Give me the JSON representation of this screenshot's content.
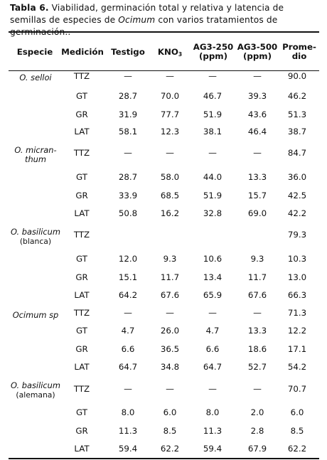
{
  "caption": {
    "label": "Tabla 6.",
    "text_before": " Viabilidad, germinación total y relativa y latencia de semillas de especies de ",
    "italic": "Ocimum",
    "text_after": " con varios tratamientos de germinación.."
  },
  "header": {
    "especie": "Especie",
    "medicion": "Medición",
    "testigo": "Testigo",
    "kno3_base": "KNO",
    "kno3_sub": "3",
    "ag250_line1": "AG3-250",
    "ag250_line2": "(ppm)",
    "ag500_line1": "AG3-500",
    "ag500_line2": "(ppm)",
    "promedio_line1": "Prome-",
    "promedio_line2": "dio"
  },
  "groups": [
    {
      "species_line1": "O. selloi",
      "species_line2": "",
      "rows": [
        {
          "medicion": "TTZ",
          "values": [
            "—",
            "—",
            "—",
            "—",
            "90.0"
          ]
        },
        {
          "medicion": "GT",
          "values": [
            "28.7",
            "70.0",
            "46.7",
            "39.3",
            "46.2"
          ]
        },
        {
          "medicion": "GR",
          "values": [
            "31.9",
            "77.7",
            "51.9",
            "43.6",
            "51.3"
          ]
        },
        {
          "medicion": "LAT",
          "values": [
            "58.1",
            "12.3",
            "38.1",
            "46.4",
            "38.7"
          ]
        }
      ]
    },
    {
      "species_line1": "O. micran-",
      "species_line2": "thum",
      "rows": [
        {
          "medicion": "TTZ",
          "values": [
            "—",
            "—",
            "—",
            "—",
            "84.7"
          ]
        },
        {
          "medicion": "GT",
          "values": [
            "28.7",
            "58.0",
            "44.0",
            "13.3",
            "36.0"
          ]
        },
        {
          "medicion": "GR",
          "values": [
            "33.9",
            "68.5",
            "51.9",
            "15.7",
            "42.5"
          ]
        },
        {
          "medicion": "LAT",
          "values": [
            "50.8",
            "16.2",
            "32.8",
            "69.0",
            "42.2"
          ]
        }
      ]
    },
    {
      "species_line1": "O. basilicum",
      "species_line2": "(blanca)",
      "rows": [
        {
          "medicion": "TTZ",
          "values": [
            "",
            "",
            "",
            "",
            "79.3"
          ]
        },
        {
          "medicion": "GT",
          "values": [
            "12.0",
            "9.3",
            "10.6",
            "9.3",
            "10.3"
          ]
        },
        {
          "medicion": "GR",
          "values": [
            "15.1",
            "11.7",
            "13.4",
            "11.7",
            "13.0"
          ]
        },
        {
          "medicion": "LAT",
          "values": [
            "64.2",
            "67.6",
            "65.9",
            "67.6",
            "66.3"
          ]
        }
      ]
    },
    {
      "species_line1": "Ocimum sp",
      "species_line2": "",
      "rows": [
        {
          "medicion": "TTZ",
          "values": [
            "—",
            "—",
            "—",
            "—",
            "71.3"
          ]
        },
        {
          "medicion": "GT",
          "values": [
            "4.7",
            "26.0",
            "4.7",
            "13.3",
            "12.2"
          ]
        },
        {
          "medicion": "GR",
          "values": [
            "6.6",
            "36.5",
            "6.6",
            "18.6",
            "17.1"
          ]
        },
        {
          "medicion": "LAT",
          "values": [
            "64.7",
            "34.8",
            "64.7",
            "52.7",
            "54.2"
          ]
        }
      ]
    },
    {
      "species_line1": "O. basilicum",
      "species_line2": "(alemana)",
      "rows": [
        {
          "medicion": "TTZ",
          "values": [
            "—",
            "—",
            "—",
            "—",
            "70.7"
          ]
        },
        {
          "medicion": "GT",
          "values": [
            "8.0",
            "6.0",
            "8.0",
            "2.0",
            "6.0"
          ]
        },
        {
          "medicion": "GR",
          "values": [
            "11.3",
            "8.5",
            "11.3",
            "2.8",
            "8.5"
          ]
        },
        {
          "medicion": "LAT",
          "values": [
            "59.4",
            "62.2",
            "59.4",
            "67.9",
            "62.2"
          ]
        }
      ]
    }
  ]
}
